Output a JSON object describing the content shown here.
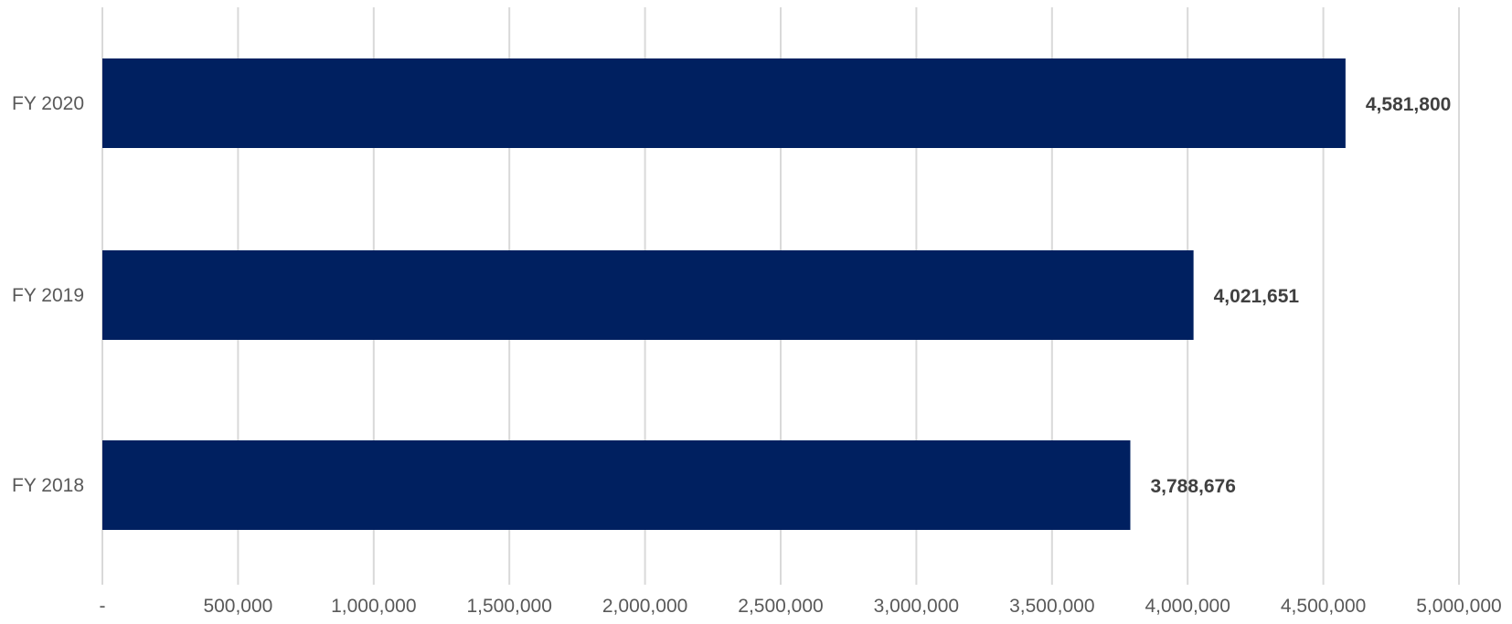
{
  "chart_data": {
    "type": "bar",
    "orientation": "horizontal",
    "categories": [
      "FY 2018",
      "FY 2019",
      "FY 2020"
    ],
    "values": [
      3788676,
      4021651,
      4581800
    ],
    "data_labels": [
      "3,788,676",
      "4,021,651",
      "4,581,800"
    ],
    "xlim": [
      0,
      5000000
    ],
    "x_ticks": [
      0,
      500000,
      1000000,
      1500000,
      2000000,
      2500000,
      3000000,
      3500000,
      4000000,
      4500000,
      5000000
    ],
    "x_tick_labels": [
      "-",
      "500,000",
      "1,000,000",
      "1,500,000",
      "2,000,000",
      "2,500,000",
      "3,000,000",
      "3,500,000",
      "4,000,000",
      "4,500,000",
      "5,000,000"
    ],
    "grid": true,
    "bar_color": "#002060",
    "title": "",
    "xlabel": "",
    "ylabel": ""
  }
}
